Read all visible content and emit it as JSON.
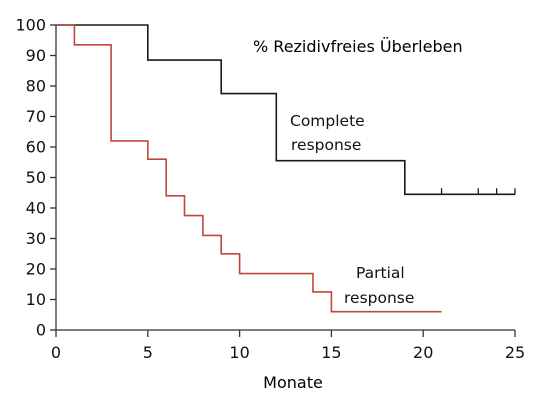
{
  "chart_data": {
    "type": "line",
    "title": "% Rezidivfreies Überleben",
    "xlabel": "Monate",
    "ylabel": "",
    "xlim": [
      0,
      25
    ],
    "ylim": [
      0,
      100
    ],
    "xticks": [
      0,
      5,
      10,
      15,
      20,
      25
    ],
    "yticks": [
      0,
      10,
      20,
      30,
      40,
      50,
      60,
      70,
      80,
      90,
      100
    ],
    "grid": false,
    "legend": "none",
    "series": [
      {
        "label_lines": [
          "Complete",
          "response"
        ],
        "color": "#1a1a1a",
        "step": true,
        "points": [
          [
            0,
            100
          ],
          [
            5,
            100
          ],
          [
            5,
            88.5
          ],
          [
            9,
            88.5
          ],
          [
            9,
            77.5
          ],
          [
            12,
            77.5
          ],
          [
            12,
            55.5
          ],
          [
            19,
            55.5
          ],
          [
            19,
            44.5
          ],
          [
            25,
            44.5
          ]
        ],
        "censor_x": [
          21,
          23,
          24,
          25
        ]
      },
      {
        "label_lines": [
          "Partial",
          "response"
        ],
        "color": "#c0473a",
        "step": true,
        "points": [
          [
            0,
            100
          ],
          [
            1,
            100
          ],
          [
            1,
            93.5
          ],
          [
            3,
            93.5
          ],
          [
            3,
            62
          ],
          [
            5,
            62
          ],
          [
            5,
            56
          ],
          [
            6,
            56
          ],
          [
            6,
            44
          ],
          [
            7,
            44
          ],
          [
            7,
            37.5
          ],
          [
            8,
            37.5
          ],
          [
            8,
            31
          ],
          [
            9,
            31
          ],
          [
            9,
            25
          ],
          [
            10,
            25
          ],
          [
            10,
            18.5
          ],
          [
            14,
            18.5
          ],
          [
            14,
            12.5
          ],
          [
            15,
            12.5
          ],
          [
            15,
            6
          ],
          [
            21,
            6
          ]
        ],
        "censor_x": []
      }
    ]
  }
}
